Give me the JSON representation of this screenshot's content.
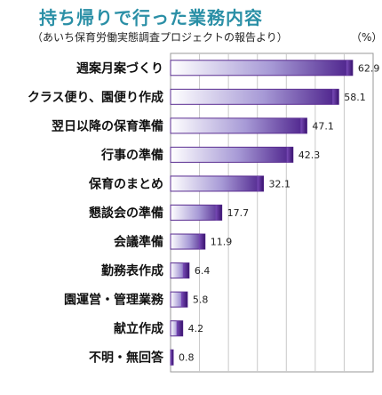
{
  "chart_data": {
    "type": "bar",
    "orientation": "horizontal",
    "title": "持ち帰りで行った業務内容",
    "subtitle": "（あいち保育労働実態調査プロジェクトの報告より）",
    "unit": "（%）",
    "categories": [
      "週案月案づくり",
      "クラス便り、園便り作成",
      "翌日以降の保育準備",
      "行事の準備",
      "保育のまとめ",
      "懇談会の準備",
      "会議準備",
      "勤務表作成",
      "園運営・管理業務",
      "献立作成",
      "不明・無回答"
    ],
    "values": [
      62.9,
      58.1,
      47.1,
      42.3,
      32.1,
      17.7,
      11.9,
      6.4,
      5.8,
      4.2,
      0.8
    ],
    "xlim": [
      0,
      70
    ],
    "grid": true,
    "bar_color": "#5a2d91"
  }
}
